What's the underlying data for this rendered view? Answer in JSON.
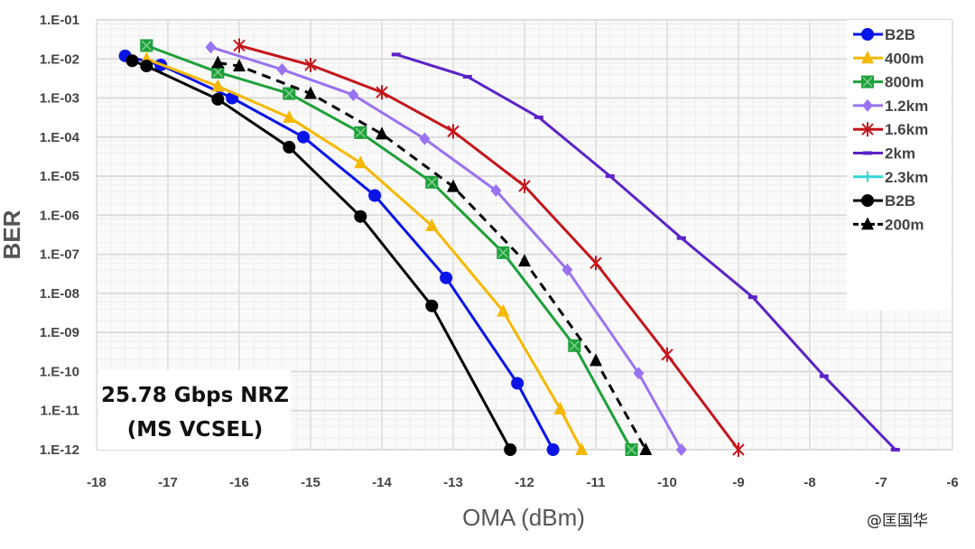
{
  "chart_data": {
    "type": "line",
    "xlabel": "OMA (dBm)",
    "ylabel": "BER",
    "xlim": [
      -18,
      -6
    ],
    "ylim": [
      1e-12,
      0.1
    ],
    "yscale": "log",
    "x_ticks": [
      "-18",
      "-17",
      "-16",
      "-15",
      "-14",
      "-13",
      "-12",
      "-11",
      "-10",
      "-9",
      "-8",
      "-7",
      "-6"
    ],
    "y_ticks": [
      "1.E-01",
      "1.E-02",
      "1.E-03",
      "1.E-04",
      "1.E-05",
      "1.E-06",
      "1.E-07",
      "1.E-08",
      "1.E-09",
      "1.E-10",
      "1.E-11",
      "1.E-12"
    ],
    "grid": true,
    "legend_position": "top-right",
    "annotation": [
      "25.78 Gbps NRZ",
      "(MS VCSEL)"
    ],
    "series": [
      {
        "name": "B2B",
        "color": "#0a14e6",
        "marker": "circle",
        "dashed": false,
        "points": [
          [
            -17.6,
            0.012
          ],
          [
            -17.1,
            0.007
          ],
          [
            -16.1,
            0.001
          ],
          [
            -15.1,
            0.0001
          ],
          [
            -14.1,
            3.2e-06
          ],
          [
            -13.1,
            2.5e-08
          ],
          [
            -12.1,
            5e-11
          ],
          [
            -11.6,
            1e-12
          ]
        ]
      },
      {
        "name": "400m",
        "color": "#f5b800",
        "marker": "triangle",
        "dashed": false,
        "points": [
          [
            -17.3,
            0.01
          ],
          [
            -16.3,
            0.002
          ],
          [
            -15.3,
            0.00032
          ],
          [
            -14.3,
            2.2e-05
          ],
          [
            -13.3,
            5.4e-07
          ],
          [
            -12.3,
            3.5e-09
          ],
          [
            -11.5,
            1.1e-11
          ],
          [
            -11.2,
            1e-12
          ]
        ]
      },
      {
        "name": "800m",
        "color": "#1fa03a",
        "marker": "square",
        "dashed": false,
        "points": [
          [
            -17.3,
            0.022
          ],
          [
            -16.3,
            0.0046
          ],
          [
            -15.3,
            0.0013
          ],
          [
            -14.3,
            0.00013
          ],
          [
            -13.3,
            7e-06
          ],
          [
            -12.3,
            1.1e-07
          ],
          [
            -11.3,
            4.6e-10
          ],
          [
            -10.5,
            1e-12
          ]
        ]
      },
      {
        "name": "1.2km",
        "color": "#9a73f0",
        "marker": "diamond",
        "dashed": false,
        "points": [
          [
            -16.4,
            0.02
          ],
          [
            -15.4,
            0.0054
          ],
          [
            -14.4,
            0.0012
          ],
          [
            -13.4,
            9e-05
          ],
          [
            -12.4,
            4.3e-06
          ],
          [
            -11.4,
            4e-08
          ],
          [
            -10.4,
            9e-11
          ],
          [
            -9.8,
            1e-12
          ]
        ]
      },
      {
        "name": "1.6km",
        "color": "#c4161c",
        "marker": "asterisk",
        "dashed": false,
        "points": [
          [
            -16,
            0.022
          ],
          [
            -15,
            0.007
          ],
          [
            -14,
            0.0014
          ],
          [
            -13,
            0.00014
          ],
          [
            -12,
            5.6e-06
          ],
          [
            -11,
            6e-08
          ],
          [
            -10,
            2.7e-10
          ],
          [
            -9,
            1e-12
          ]
        ]
      },
      {
        "name": "2km",
        "color": "#5b23c8",
        "marker": "dash",
        "dashed": false,
        "points": [
          [
            -13.8,
            0.013
          ],
          [
            -12.8,
            0.0035
          ],
          [
            -11.8,
            0.00032
          ],
          [
            -10.8,
            1e-05
          ],
          [
            -9.8,
            2.6e-07
          ],
          [
            -8.8,
            8e-09
          ],
          [
            -7.8,
            7.6e-11
          ],
          [
            -6.8,
            1e-12
          ]
        ]
      },
      {
        "name": "2.3km",
        "color": "#38d6d6",
        "marker": "plus",
        "dashed": false,
        "points": []
      },
      {
        "name": "B2B",
        "color": "#000000",
        "marker": "circle",
        "dashed": false,
        "points": [
          [
            -17.5,
            0.009
          ],
          [
            -17.3,
            0.0066
          ],
          [
            -16.3,
            0.00093
          ],
          [
            -15.3,
            5.5e-05
          ],
          [
            -14.3,
            9.3e-07
          ],
          [
            -13.3,
            4.8e-09
          ],
          [
            -12.2,
            1e-12
          ]
        ]
      },
      {
        "name": "200m",
        "color": "#000000",
        "marker": "triangle",
        "dashed": true,
        "points": [
          [
            -16.3,
            0.008
          ],
          [
            -16,
            0.0066
          ],
          [
            -15,
            0.0013
          ],
          [
            -14,
            0.00012
          ],
          [
            -13,
            5.4e-06
          ],
          [
            -12,
            6.7e-08
          ],
          [
            -11,
            1.9e-10
          ],
          [
            -10.3,
            1e-12
          ]
        ]
      }
    ]
  },
  "watermark": "@匡国华"
}
